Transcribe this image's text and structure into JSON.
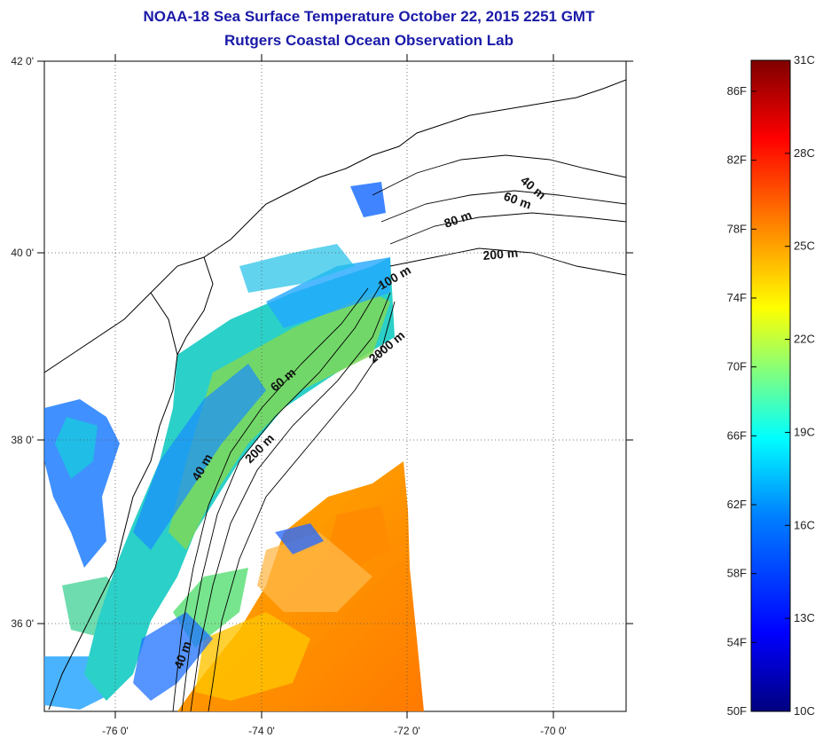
{
  "title_line1": "NOAA-18 Sea Surface Temperature October 22, 2015 2251 GMT",
  "title_line2": "Rutgers Coastal Ocean Observation Lab",
  "lat_ticks": [
    {
      "value": 42,
      "label": "42 0'"
    },
    {
      "value": 40,
      "label": "40 0'"
    },
    {
      "value": 38,
      "label": "38 0'"
    },
    {
      "value": 36,
      "label": "36 0'"
    }
  ],
  "lon_ticks": [
    {
      "value": -76,
      "label": "-76 0'"
    },
    {
      "value": -74,
      "label": "-74 0'"
    },
    {
      "value": -72,
      "label": "-72 0'"
    },
    {
      "value": -70,
      "label": "-70 0'"
    }
  ],
  "contour_labels": [
    "40 m",
    "60 m",
    "80 m",
    "200 m",
    "100 m",
    "2000 m",
    "60 m",
    "200 m",
    "40 m",
    "40 m"
  ],
  "colorbar": {
    "min_c": 10,
    "max_c": 31,
    "fahrenheit": [
      {
        "value": 86,
        "label": "86F"
      },
      {
        "value": 82,
        "label": "82F"
      },
      {
        "value": 78,
        "label": "78F"
      },
      {
        "value": 74,
        "label": "74F"
      },
      {
        "value": 70,
        "label": "70F"
      },
      {
        "value": 66,
        "label": "66F"
      },
      {
        "value": 62,
        "label": "62F"
      },
      {
        "value": 58,
        "label": "58F"
      },
      {
        "value": 54,
        "label": "54F"
      },
      {
        "value": 50,
        "label": "50F"
      }
    ],
    "celsius": [
      {
        "value": 31,
        "label": "31C"
      },
      {
        "value": 28,
        "label": "28C"
      },
      {
        "value": 25,
        "label": "25C"
      },
      {
        "value": 22,
        "label": "22C"
      },
      {
        "value": 19,
        "label": "19C"
      },
      {
        "value": 16,
        "label": "16C"
      },
      {
        "value": 13,
        "label": "13C"
      },
      {
        "value": 10,
        "label": "10C"
      }
    ],
    "colors": [
      "#00007f",
      "#0000ff",
      "#0080ff",
      "#00ffff",
      "#80ff80",
      "#ffff00",
      "#ff8000",
      "#ff0000",
      "#7f0000"
    ]
  }
}
